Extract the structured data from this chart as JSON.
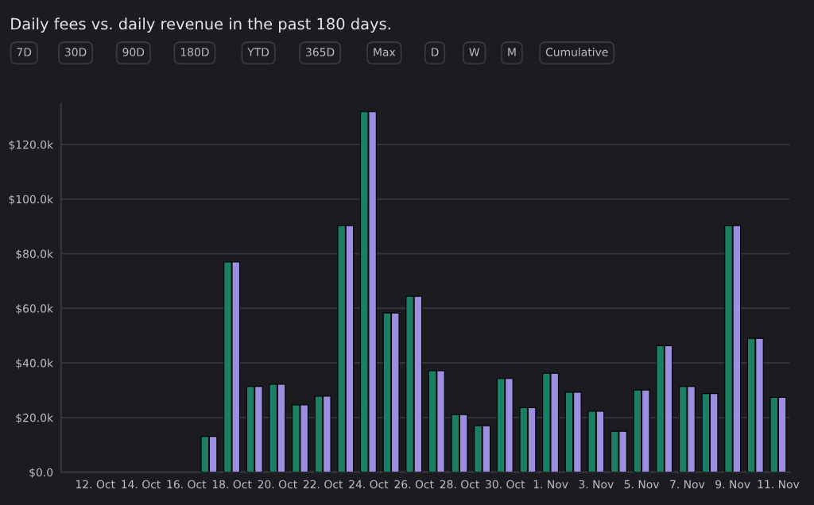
{
  "chart_data": {
    "type": "bar",
    "title": "Daily fees vs. daily revenue in the past 180 days.",
    "annotations": [
      "7D",
      "30D",
      "90D",
      "180D",
      "YTD",
      "365D",
      "Max",
      "D",
      "W",
      "M",
      "Cumulative"
    ],
    "categories": [
      null,
      "12. Oct",
      null,
      "14. Oct",
      null,
      "16. Oct",
      null,
      "18. Oct",
      null,
      "20. Oct",
      null,
      "22. Oct",
      null,
      "24. Oct",
      null,
      "26. Oct",
      null,
      "28. Oct",
      null,
      "30. Oct",
      null,
      "1. Nov",
      null,
      "3. Nov",
      null,
      "5. Nov",
      null,
      "7. Nov",
      null,
      "9. Nov",
      null,
      "11. Nov"
    ],
    "series": [
      {
        "color": "#1b7f63",
        "values": [
          null,
          null,
          null,
          null,
          null,
          null,
          13100,
          77000,
          31400,
          32200,
          24600,
          27800,
          90300,
          132000,
          58300,
          64400,
          37100,
          21100,
          17000,
          34300,
          23600,
          36200,
          29300,
          22300,
          15000,
          30100,
          46300,
          31400,
          28800,
          90300,
          49000,
          27400
        ]
      },
      {
        "color": "#9c8ee0",
        "values": [
          null,
          null,
          null,
          null,
          null,
          null,
          13100,
          77000,
          31400,
          32200,
          24600,
          27800,
          90300,
          132000,
          58300,
          64400,
          37100,
          21100,
          17000,
          34300,
          23600,
          36200,
          29300,
          22300,
          15000,
          30100,
          46300,
          31400,
          28800,
          90300,
          49000,
          27400
        ]
      }
    ],
    "ylim": [
      0,
      135000
    ],
    "yticks": [
      {
        "value": 0,
        "label": "$0.0"
      },
      {
        "value": 20000,
        "label": "$20.0k"
      },
      {
        "value": 40000,
        "label": "$40.0k"
      },
      {
        "value": 60000,
        "label": "$60.0k"
      },
      {
        "value": 80000,
        "label": "$80.0k"
      },
      {
        "value": 100000,
        "label": "$100.0k"
      },
      {
        "value": 120000,
        "label": "$120.0k"
      }
    ],
    "grid": "y"
  }
}
